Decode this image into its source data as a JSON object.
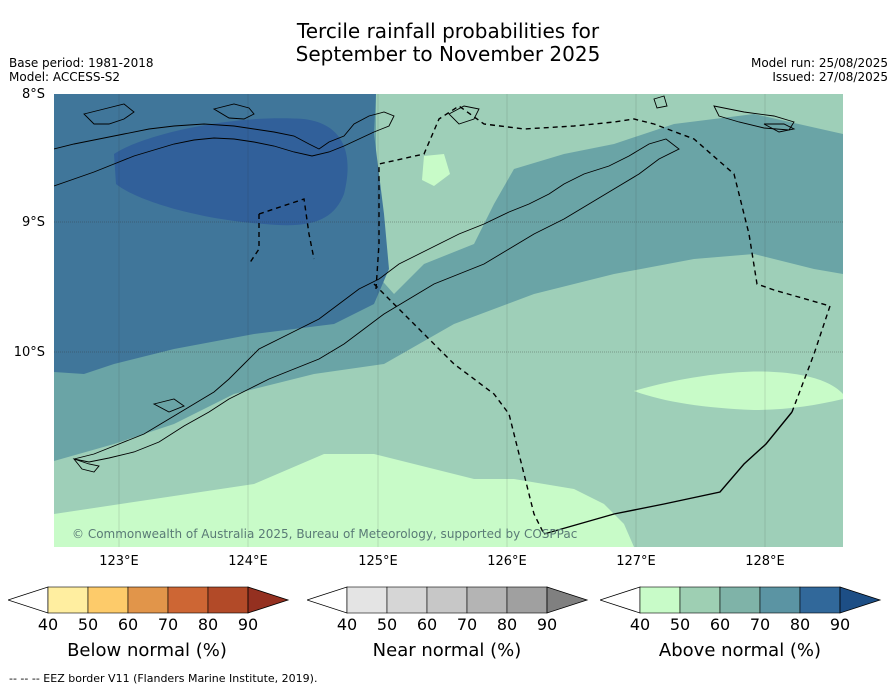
{
  "title_line1": "Tercile rainfall probabilities for",
  "title_line2": "September to November 2025",
  "base_period": "Base period: 1981-2018",
  "model": "Model: ACCESS-S2",
  "model_run": "Model run: 25/08/2025",
  "issued": "Issued: 27/08/2025",
  "copyright": "© Commonwealth of Australia 2025, Bureau of Meteorology, supported by COSPPac",
  "lat_labels": [
    "8°S",
    "9°S",
    "10°S"
  ],
  "lon_labels": [
    "123°E",
    "124°E",
    "125°E",
    "126°E",
    "127°E",
    "128°E"
  ],
  "colorbars": [
    {
      "title": "Below normal (%)",
      "ticks": [
        "40",
        "50",
        "60",
        "70",
        "80",
        "90"
      ],
      "colors": [
        "#ffffff",
        "#ffeea0",
        "#fdcb6a",
        "#e1954a",
        "#cd6634",
        "#b24a28",
        "#943020"
      ]
    },
    {
      "title": "Near normal (%)",
      "ticks": [
        "40",
        "50",
        "60",
        "70",
        "80",
        "90"
      ],
      "colors": [
        "#ffffff",
        "#e4e4e4",
        "#d6d6d6",
        "#c7c7c7",
        "#b4b4b4",
        "#a0a0a0",
        "#808080"
      ]
    },
    {
      "title": "Above normal (%)",
      "ticks": [
        "40",
        "50",
        "60",
        "70",
        "80",
        "90"
      ],
      "colors": [
        "#ffffff",
        "#c8fbc8",
        "#9ecfb3",
        "#7fb3a8",
        "#5b94a3",
        "#31689a",
        "#1d4e85"
      ]
    }
  ],
  "footer": "--  --  -- EEZ border V11 (Flanders Marine Institute, 2019).",
  "map_colors": {
    "c50": "#c8fbc8",
    "c60": "#9ecfb8",
    "c70": "#6aa4a6",
    "c80": "#40769a",
    "c90": "#31609a"
  }
}
